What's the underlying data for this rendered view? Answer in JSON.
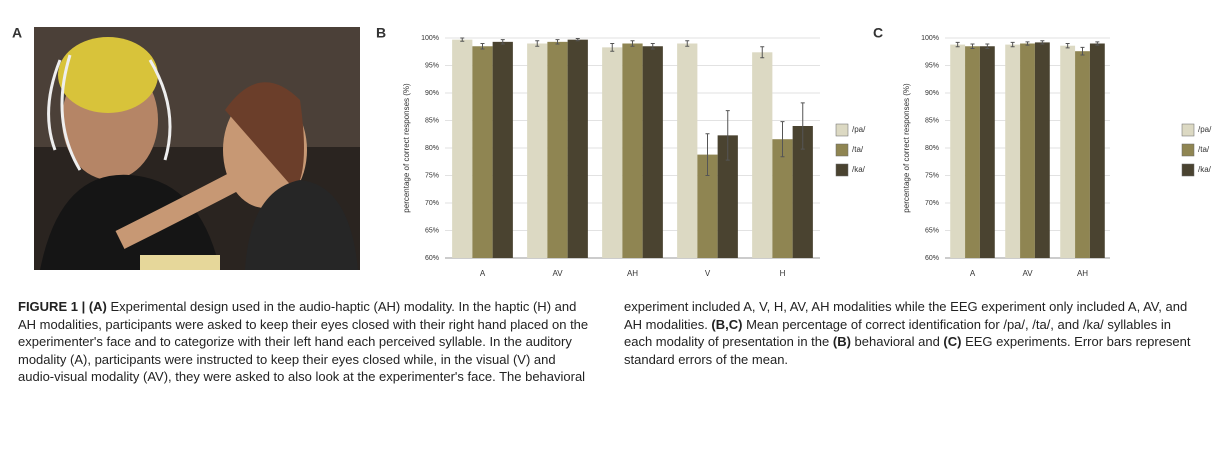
{
  "panel_labels": [
    "A",
    "B",
    "C"
  ],
  "chart_data": [
    {
      "type": "bar",
      "y_label": "percentage of correct responses (%)",
      "categories": [
        "A",
        "AV",
        "AH",
        "V",
        "H"
      ],
      "series": [
        {
          "name": "/pa/",
          "color": "#dcd9c3",
          "values": [
            99.7,
            99,
            98.3,
            99,
            97.4
          ],
          "errors": [
            0.3,
            0.5,
            0.7,
            0.5,
            1
          ]
        },
        {
          "name": "/ta/",
          "color": "#8f8552",
          "values": [
            98.5,
            99.3,
            99,
            78.8,
            81.6
          ],
          "errors": [
            0.5,
            0.4,
            0.5,
            3.8,
            3.2
          ]
        },
        {
          "name": "/ka/",
          "color": "#4a4330",
          "values": [
            99.3,
            99.7,
            98.5,
            82.3,
            84
          ],
          "errors": [
            0.4,
            0.2,
            0.5,
            4.5,
            4.2
          ]
        }
      ],
      "ylim": [
        60,
        100
      ],
      "yticks": [
        {
          "value": 60,
          "label": "60%"
        },
        {
          "value": 65,
          "label": "65%"
        },
        {
          "value": 70,
          "label": "70%"
        },
        {
          "value": 75,
          "label": "75%"
        },
        {
          "value": 80,
          "label": "80%"
        },
        {
          "value": 85,
          "label": "85%"
        },
        {
          "value": 90,
          "label": "90%"
        },
        {
          "value": 95,
          "label": "95%"
        },
        {
          "value": 100,
          "label": "100%"
        }
      ],
      "grid": true,
      "legend": "right"
    },
    {
      "type": "bar",
      "y_label": "percentage of correct responses (%)",
      "categories": [
        "A",
        "AV",
        "AH"
      ],
      "series": [
        {
          "name": "/pa/",
          "color": "#dcd9c3",
          "values": [
            98.8,
            98.8,
            98.6
          ],
          "errors": [
            0.4,
            0.4,
            0.4
          ]
        },
        {
          "name": "/ta/",
          "color": "#8f8552",
          "values": [
            98.5,
            99,
            97.6
          ],
          "errors": [
            0.4,
            0.3,
            0.7
          ]
        },
        {
          "name": "/ka/",
          "color": "#4a4330",
          "values": [
            98.5,
            99.2,
            99
          ],
          "errors": [
            0.4,
            0.3,
            0.3
          ]
        }
      ],
      "ylim": [
        60,
        100
      ],
      "yticks": [
        {
          "value": 60,
          "label": "60%"
        },
        {
          "value": 65,
          "label": "65%"
        },
        {
          "value": 70,
          "label": "70%"
        },
        {
          "value": 75,
          "label": "75%"
        },
        {
          "value": 80,
          "label": "80%"
        },
        {
          "value": 85,
          "label": "85%"
        },
        {
          "value": 90,
          "label": "90%"
        },
        {
          "value": 95,
          "label": "95%"
        },
        {
          "value": 100,
          "label": "100%"
        }
      ],
      "grid": true,
      "legend": "right"
    }
  ],
  "caption": [
    {
      "text": "FIGURE 1 | (A)",
      "bold": true
    },
    {
      "text": " Experimental design used in the audio-haptic (AH) modality. In the haptic (H) and AH modalities, participants were asked to keep their eyes closed with their right hand placed on the experimenter's face and to categorize with their left hand each perceived syllable. In the auditory modality (A), participants were instructed to keep their eyes closed while, in the visual (V) and audio-visual modality (AV), they were asked to also look at the experimenter's face. The behavioral experiment included A, V, H, AV, AH modalities while the EEG experiment only included A, AV, and AH modalities. ",
      "bold": false
    },
    {
      "text": "(B,C)",
      "bold": true
    },
    {
      "text": " Mean percentage of correct identification for /pa/, /ta/, and /ka/ syllables in each modality of presentation in the ",
      "bold": false
    },
    {
      "text": "(B)",
      "bold": true
    },
    {
      "text": " behavioral and ",
      "bold": false
    },
    {
      "text": "(C)",
      "bold": true
    },
    {
      "text": " EEG experiments. Error bars represent standard errors of the mean.",
      "bold": false
    }
  ]
}
